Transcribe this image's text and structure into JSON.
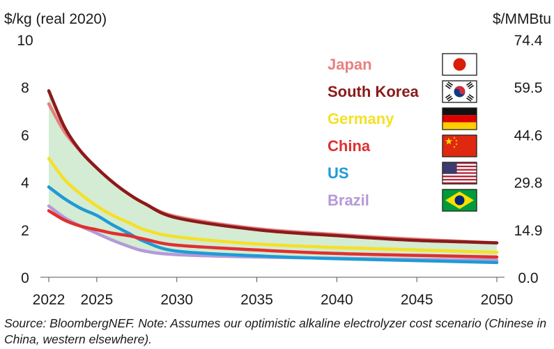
{
  "chart_data": {
    "type": "line",
    "y_left_label": "$/kg (real 2020)",
    "y_right_label": "$/MMBtu",
    "x_ticks": [
      2022,
      2025,
      2030,
      2035,
      2040,
      2045,
      2050
    ],
    "y_left_ticks": [
      "0",
      "2",
      "4",
      "6",
      "8",
      "10"
    ],
    "y_left_tick_values": [
      0,
      2,
      4,
      6,
      8,
      10
    ],
    "y_right_ticks": [
      "0.0",
      "14.9",
      "29.8",
      "44.6",
      "59.5",
      "74.4"
    ],
    "y_right_tick_values": [
      0,
      2,
      4,
      6,
      8,
      10
    ],
    "xlim": [
      2022,
      2050
    ],
    "ylim": [
      0,
      10
    ],
    "band": {
      "from_series": "South Korea",
      "to_series": "Brazil",
      "color": "#d3ecd3"
    },
    "series": [
      {
        "name": "Japan",
        "color": "#e88080",
        "x": [
          2022,
          2023,
          2024,
          2025,
          2026,
          2027,
          2028,
          2030,
          2035,
          2040,
          2045,
          2050
        ],
        "y": [
          7.3,
          6.1,
          5.3,
          4.6,
          4.0,
          3.5,
          3.1,
          2.55,
          2.05,
          1.8,
          1.6,
          1.45
        ]
      },
      {
        "name": "South Korea",
        "color": "#8b1a1a",
        "x": [
          2022,
          2023,
          2024,
          2025,
          2026,
          2027,
          2028,
          2030,
          2035,
          2040,
          2045,
          2050
        ],
        "y": [
          7.85,
          6.3,
          5.3,
          4.6,
          4.0,
          3.5,
          3.1,
          2.5,
          2.0,
          1.75,
          1.55,
          1.45
        ]
      },
      {
        "name": "Germany",
        "color": "#f5e028",
        "x": [
          2022,
          2023,
          2024,
          2025,
          2026,
          2027,
          2028,
          2030,
          2035,
          2040,
          2045,
          2050
        ],
        "y": [
          5.0,
          4.1,
          3.5,
          3.0,
          2.6,
          2.3,
          2.0,
          1.7,
          1.4,
          1.25,
          1.15,
          1.05
        ]
      },
      {
        "name": "China",
        "color": "#e03030",
        "x": [
          2022,
          2023,
          2024,
          2025,
          2026,
          2027,
          2028,
          2030,
          2035,
          2040,
          2045,
          2050
        ],
        "y": [
          2.8,
          2.4,
          2.15,
          2.0,
          1.85,
          1.75,
          1.6,
          1.35,
          1.15,
          1.0,
          0.92,
          0.85
        ]
      },
      {
        "name": "US",
        "color": "#1f9ad6",
        "x": [
          2022,
          2023,
          2024,
          2025,
          2026,
          2027,
          2028,
          2030,
          2035,
          2040,
          2045,
          2050
        ],
        "y": [
          3.8,
          3.3,
          2.9,
          2.6,
          2.2,
          1.85,
          1.5,
          1.1,
          0.9,
          0.78,
          0.7,
          0.62
        ]
      },
      {
        "name": "Brazil",
        "color": "#b49ad8",
        "x": [
          2022,
          2023,
          2024,
          2025,
          2026,
          2027,
          2028,
          2030,
          2035,
          2040,
          2045,
          2050
        ],
        "y": [
          3.0,
          2.5,
          2.15,
          1.85,
          1.55,
          1.3,
          1.1,
          0.95,
          0.85,
          0.8,
          0.75,
          0.72
        ]
      }
    ],
    "legend": [
      {
        "name": "Japan",
        "color": "#e88080",
        "flag": "japan-flag"
      },
      {
        "name": "South Korea",
        "color": "#8b1a1a",
        "flag": "south-korea-flag"
      },
      {
        "name": "Germany",
        "color": "#f5e028",
        "flag": "germany-flag"
      },
      {
        "name": "China",
        "color": "#e03030",
        "flag": "china-flag"
      },
      {
        "name": "US",
        "color": "#1f9ad6",
        "flag": "us-flag"
      },
      {
        "name": "Brazil",
        "color": "#b49ad8",
        "flag": "brazil-flag"
      }
    ],
    "legend_placement": "top-right",
    "grid": false
  },
  "footnote": "Source: BloombergNEF. Note: Assumes our optimistic alkaline electrolyzer cost scenario (Chinese in China, western elsewhere)."
}
